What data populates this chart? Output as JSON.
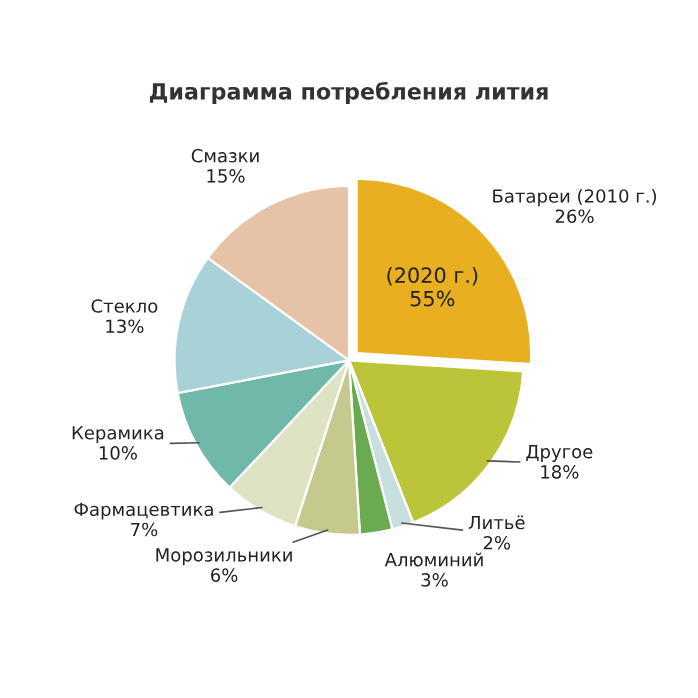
{
  "chart_data": {
    "type": "pie",
    "title": "Диаграмма потребления лития",
    "categories": [
      "Батареи (2010 г.)",
      "Другое",
      "Литьё",
      "Алюминий",
      "Морозильники",
      "Фармацевтика",
      "Керамика",
      "Стекло",
      "Смазки"
    ],
    "values": [
      26,
      18,
      2,
      3,
      6,
      7,
      10,
      13,
      15
    ],
    "value_labels": [
      "26%",
      "18%",
      "2%",
      "3%",
      "6%",
      "7%",
      "10%",
      "13%",
      "15%"
    ],
    "colors": [
      "#e8b020",
      "#bcc43a",
      "#c8dfe0",
      "#6aaa50",
      "#c5c98d",
      "#dde3c3",
      "#6fb8aa",
      "#a9d2d8",
      "#e6c3a6"
    ],
    "annotations": [
      "(2020 г.)\n55%"
    ],
    "legend": false
  }
}
